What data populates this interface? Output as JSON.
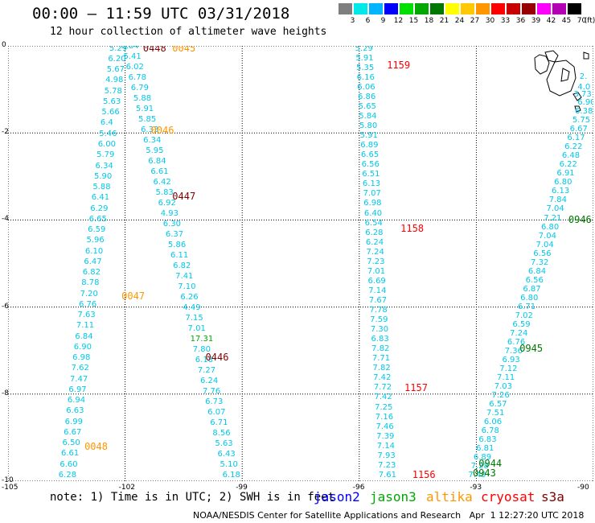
{
  "title": "00:00 – 11:59 UTC 03/31/2018",
  "subtitle": "12 hour collection of altimeter wave heights",
  "legend": {
    "labels": [
      "3",
      "6",
      "9",
      "12",
      "15",
      "18",
      "21",
      "24",
      "27",
      "30",
      "33",
      "36",
      "39",
      "42",
      "45",
      "70",
      "(ft)"
    ],
    "colors": [
      "#7f7f7f",
      "#00e8e8",
      "#00b4ff",
      "#0000ff",
      "#00e000",
      "#00a800",
      "#007800",
      "#ffff00",
      "#ffc800",
      "#ff9600",
      "#ff0000",
      "#c80000",
      "#960000",
      "#ff00ff",
      "#b400b4",
      "#000000"
    ]
  },
  "axes": {
    "x_ticks": [
      "-105",
      "-102",
      "-99",
      "-96",
      "-93",
      "-90"
    ],
    "y_ticks": [
      "0",
      "-2",
      "-4",
      "-6",
      "-8",
      "-10"
    ],
    "x_range": [
      -105,
      -90
    ],
    "y_range": [
      -10,
      0
    ]
  },
  "tracks": [
    {
      "name": "track-1",
      "color": "#00c8e8",
      "start": [
        -102.2,
        -0.05
      ],
      "end": [
        -103.5,
        -9.85
      ],
      "values": [
        "5.29",
        "6.20",
        "5.67",
        "4.98",
        "5.78",
        "5.63",
        "5.66",
        "6.4",
        "5.46",
        "6.00",
        "5.79",
        "6.34",
        "5.90",
        "5.88",
        "6.41",
        "6.29",
        "6.65",
        "6.59",
        "5.96",
        "6.10",
        "6.47",
        "6.82",
        "8.78",
        "7.20",
        "6.76",
        "7.63",
        "7.11",
        "6.84",
        "6.90",
        "6.98",
        "7.62",
        "7.47",
        "6.97",
        "6.94",
        "6.63",
        "6.99",
        "6.67",
        "6.50",
        "6.61",
        "6.60",
        "6.28"
      ]
    },
    {
      "name": "track-2",
      "color": "#00c8e8",
      "start": [
        -101.9,
        0.0
      ],
      "end": [
        -99.3,
        -9.85
      ],
      "values": [
        "5.84",
        "5.41",
        "6.02",
        "6.78",
        "6.79",
        "5.88",
        "5.91",
        "5.85",
        "6.33",
        "6.34",
        "5.95",
        "6.84",
        "6.61",
        "6.42",
        "5.83",
        "6.92",
        "4.93",
        "6.30",
        "6.37",
        "5.86",
        "6.11",
        "6.82",
        "7.41",
        "7.10",
        "6.26",
        "4.49",
        "7.15",
        "7.01",
        "17.31",
        "7.80",
        "6.18",
        "7.27",
        "6.24",
        "7.76",
        "6.73",
        "6.07",
        "6.71",
        "8.56",
        "5.63",
        "6.43",
        "5.10",
        "6.18"
      ]
    },
    {
      "name": "track-3",
      "color": "#00c8e8",
      "start": [
        -95.9,
        -0.05
      ],
      "end": [
        -95.3,
        -9.85
      ],
      "values": [
        "5.29",
        "5.91",
        "5.35",
        "6.16",
        "6.06",
        "6.86",
        "5.65",
        "5.84",
        "5.80",
        "5.91",
        "6.89",
        "6.65",
        "6.56",
        "6.51",
        "6.13",
        "7.07",
        "6.98",
        "6.40",
        "6.54",
        "6.28",
        "6.24",
        "7.24",
        "7.23",
        "7.01",
        "6.69",
        "7.14",
        "7.67",
        "7.78",
        "7.59",
        "7.30",
        "6.83",
        "7.82",
        "7.71",
        "7.82",
        "7.42",
        "7.72",
        "7.42",
        "7.25",
        "7.16",
        "7.46",
        "7.39",
        "7.14",
        "7.93",
        "7.23",
        "7.61"
      ]
    },
    {
      "name": "track-4",
      "color": "#00c8e8",
      "start": [
        -90.2,
        -1.3
      ],
      "end": [
        -93.0,
        -9.85
      ],
      "values": [
        "6.90",
        "6.38",
        "5.75",
        "6.67",
        "6.17",
        "6.22",
        "6.48",
        "6.22",
        "6.91",
        "6.80",
        "6.13",
        "7.84",
        "7.04",
        "7.21",
        "6.80",
        "7.04",
        "7.04",
        "6.56",
        "7.32",
        "6.84",
        "6.56",
        "6.87",
        "6.80",
        "6.71",
        "7.02",
        "6.59",
        "7.24",
        "6.76",
        "7.36",
        "6.93",
        "7.12",
        "7.11",
        "7.03",
        "7.26",
        "6.57",
        "7.51",
        "6.06",
        "6.78",
        "6.83",
        "6.81",
        "6.89",
        "7.28",
        "7.49"
      ]
    }
  ],
  "extras": [
    {
      "text": "2.",
      "lon": -90.15,
      "lat": -0.7,
      "color": "#00c8e8"
    },
    {
      "text": "4.0",
      "lon": -90.2,
      "lat": -0.95,
      "color": "#00c8e8"
    },
    {
      "text": "3.73",
      "lon": -90.3,
      "lat": -1.1,
      "color": "#00c8e8"
    }
  ],
  "time_labels": [
    {
      "text": "0448",
      "lon": -101.5,
      "lat": -0.05,
      "color": "#800000"
    },
    {
      "text": "0045",
      "lon": -100.75,
      "lat": -0.05,
      "color": "#ff9600"
    },
    {
      "text": "0046",
      "lon": -101.3,
      "lat": -1.95,
      "color": "#ff9600"
    },
    {
      "text": "0447",
      "lon": -100.75,
      "lat": -3.45,
      "color": "#800000"
    },
    {
      "text": "0047",
      "lon": -102.05,
      "lat": -5.75,
      "color": "#ff9600"
    },
    {
      "text": "0446",
      "lon": -99.9,
      "lat": -7.15,
      "color": "#800000"
    },
    {
      "text": "0048",
      "lon": -103.0,
      "lat": -9.2,
      "color": "#ff9600"
    },
    {
      "text": "1159",
      "lon": -95.25,
      "lat": -0.45,
      "color": "#ff0000"
    },
    {
      "text": "1158",
      "lon": -94.9,
      "lat": -4.2,
      "color": "#ff0000"
    },
    {
      "text": "1157",
      "lon": -94.8,
      "lat": -7.85,
      "color": "#ff0000"
    },
    {
      "text": "1156",
      "lon": -94.6,
      "lat": -9.85,
      "color": "#ff0000"
    },
    {
      "text": "0946",
      "lon": -90.6,
      "lat": -4.0,
      "color": "#007800"
    },
    {
      "text": "0945",
      "lon": -91.85,
      "lat": -6.95,
      "color": "#007800"
    },
    {
      "text": "0944",
      "lon": -92.9,
      "lat": -9.6,
      "color": "#007800"
    },
    {
      "text": "0943",
      "lon": -93.05,
      "lat": -9.82,
      "color": "#007800"
    }
  ],
  "note": "note: 1) Time is in UTC; 2) SWH is in feet",
  "satellites": [
    {
      "name": "jason2",
      "color": "#0000ff"
    },
    {
      "name": "jason3",
      "color": "#00a800"
    },
    {
      "name": "altika",
      "color": "#ff9600"
    },
    {
      "name": "cryosat",
      "color": "#ff0000"
    },
    {
      "name": "s3a",
      "color": "#800000"
    }
  ],
  "credit": "NOAA/NESDIS Center for Satellite Applications and Research   Apr  1 12:27:20 UTC 2018"
}
